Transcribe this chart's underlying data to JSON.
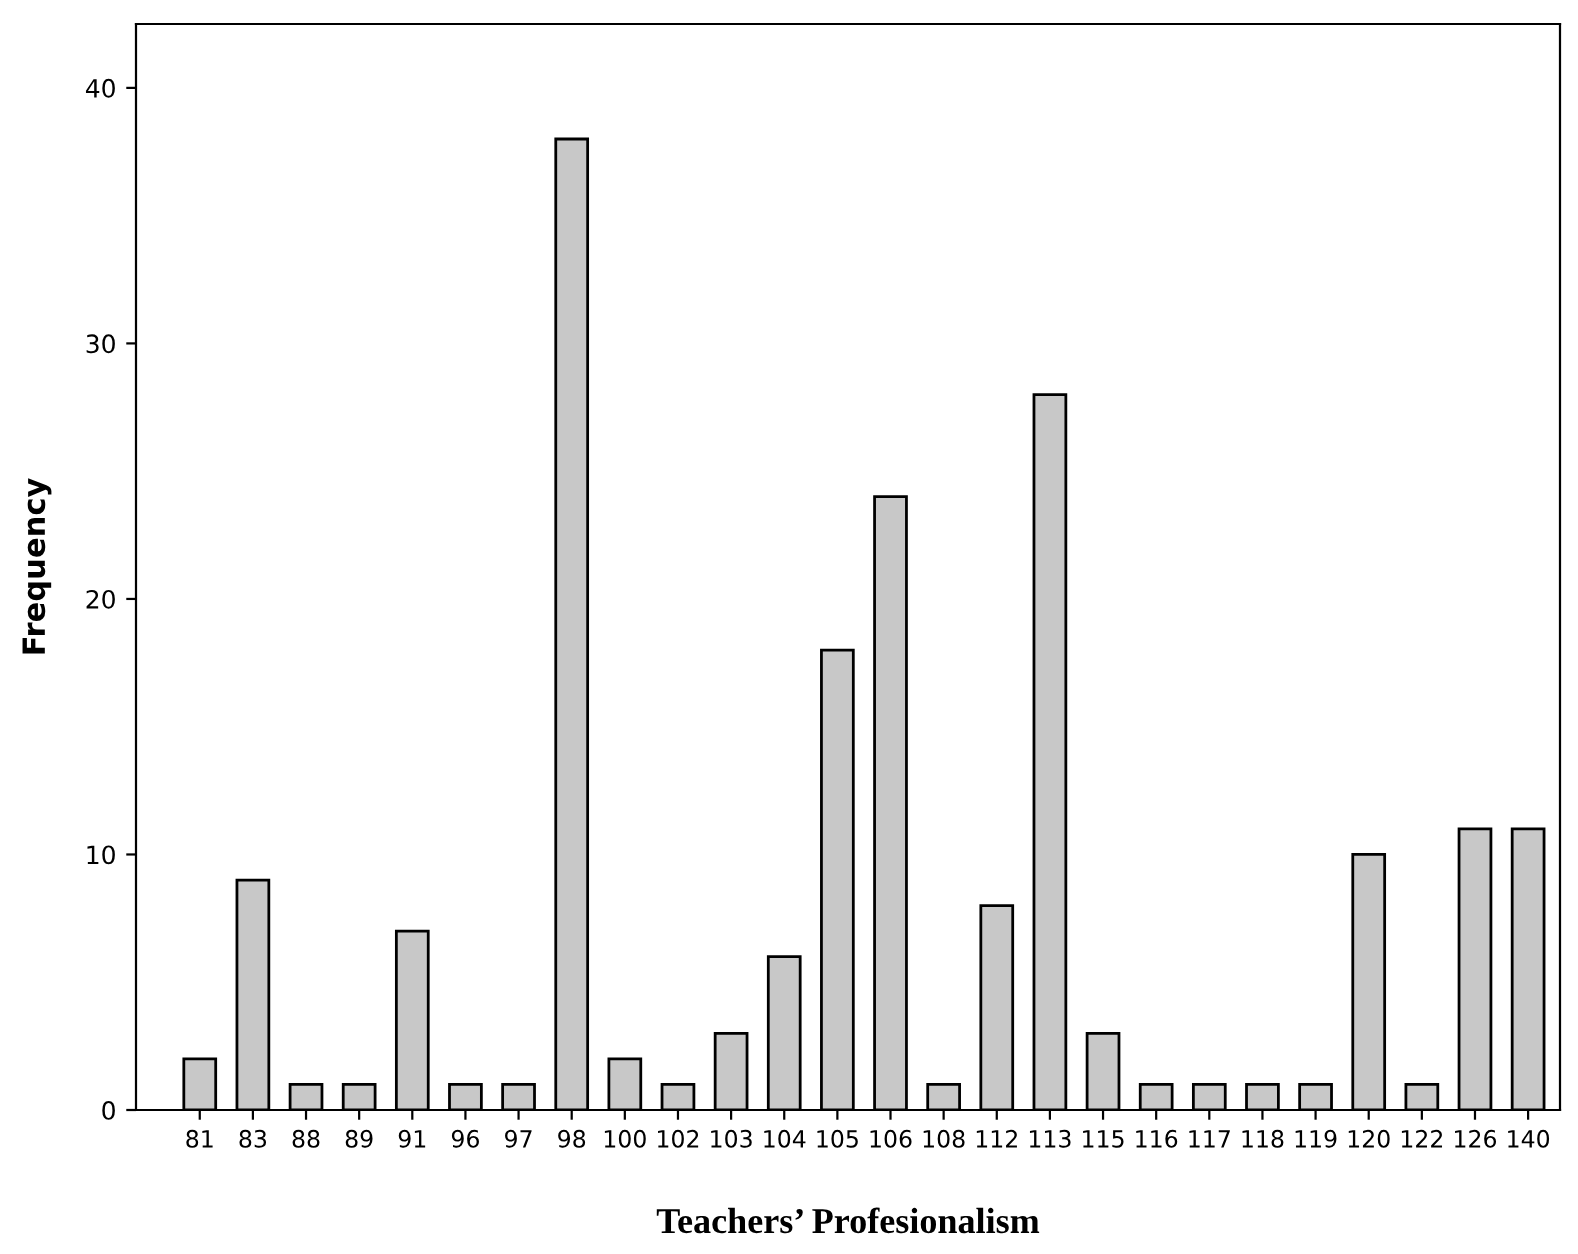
{
  "chart_data": {
    "type": "bar",
    "xlabel": "Teachers’ Profesionalism",
    "ylabel": "Frequency",
    "categories": [
      "81",
      "83",
      "88",
      "89",
      "91",
      "96",
      "97",
      "98",
      "100",
      "102",
      "103",
      "104",
      "105",
      "106",
      "108",
      "112",
      "113",
      "115",
      "116",
      "117",
      "118",
      "119",
      "120",
      "122",
      "126",
      "140"
    ],
    "values": [
      2,
      9,
      1,
      1,
      7,
      1,
      1,
      38,
      2,
      1,
      3,
      6,
      18,
      24,
      1,
      8,
      28,
      3,
      1,
      1,
      1,
      1,
      10,
      1,
      11,
      11
    ],
    "color": "#c8c8c8",
    "ylim": [
      0,
      42.5
    ],
    "yticks": [
      0,
      10,
      20,
      30,
      40
    ],
    "grid": false,
    "legend": false
  }
}
